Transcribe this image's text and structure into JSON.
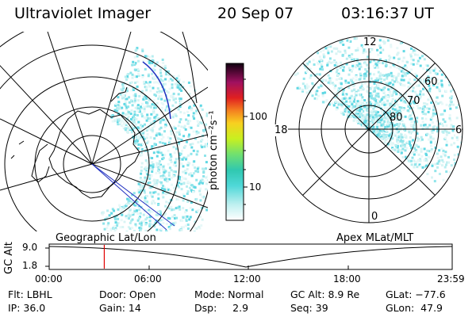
{
  "header": {
    "instrument": "Ultraviolet Imager",
    "date": "20 Sep 07",
    "time": "03:16:37 UT"
  },
  "colorbar": {
    "unit_label": "photon cm⁻²s⁻¹",
    "ticks": [
      {
        "label": "100",
        "value": 100
      },
      {
        "label": "10",
        "value": 10
      }
    ],
    "scale": "log",
    "colors": [
      "#ffffff",
      "#8fe8e8",
      "#2fd0c8",
      "#80e060",
      "#d8e820",
      "#f4a020",
      "#e02020",
      "#a01050",
      "#200010"
    ]
  },
  "polar_plot": {
    "hour_labels": {
      "top": "12",
      "left": "18",
      "right": "6",
      "bottom": "0"
    },
    "lat_labels": [
      {
        "label": "60",
        "value": 60
      },
      {
        "label": "70",
        "value": 70
      },
      {
        "label": "80",
        "value": 80
      }
    ]
  },
  "timeline": {
    "left_label": "Geographic Lat/Lon",
    "right_label": "Apex MLat/MLT",
    "axis_label": "GC Alt",
    "y_ticks": [
      "9.0",
      "1.8"
    ],
    "x_ticks": [
      "00:00",
      "06:00",
      "12:00",
      "18:00",
      "23:59"
    ],
    "marker_hour": 3.28,
    "marker_color": "#e00000"
  },
  "info": {
    "flt": "Flt: LBHL",
    "door": "Door: Open",
    "mode": "Mode: Normal",
    "gc_alt": "GC Alt: 8.9 Re",
    "glat": "GLat: −77.6",
    "ip": "IP: 36.0",
    "gain": "Gain: 14",
    "dsp": "Dsp:     2.9",
    "seq": "Seq: 39",
    "glon": "GLon:  47.9"
  }
}
